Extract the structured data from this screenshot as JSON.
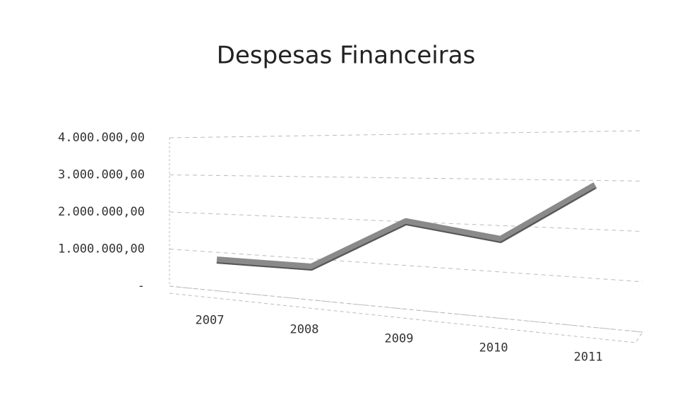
{
  "chart_data": {
    "type": "line",
    "title": "Despesas Financeiras",
    "categories": [
      "2007",
      "2008",
      "2009",
      "2010",
      "2011"
    ],
    "series": [
      {
        "name": "Despesas Financeiras",
        "color": "#8a8a8a",
        "values": [
          800000,
          800000,
          2000000,
          1700000,
          2900000
        ]
      }
    ],
    "ylim": [
      0,
      4000000
    ],
    "yticks": [
      {
        "value": 0,
        "label": "-"
      },
      {
        "value": 1000000,
        "label": "1.000.000,00"
      },
      {
        "value": 2000000,
        "label": "2.000.000,00"
      },
      {
        "value": 3000000,
        "label": "3.000.000,00"
      },
      {
        "value": 4000000,
        "label": "4.000.000,00"
      }
    ],
    "grid": true
  }
}
